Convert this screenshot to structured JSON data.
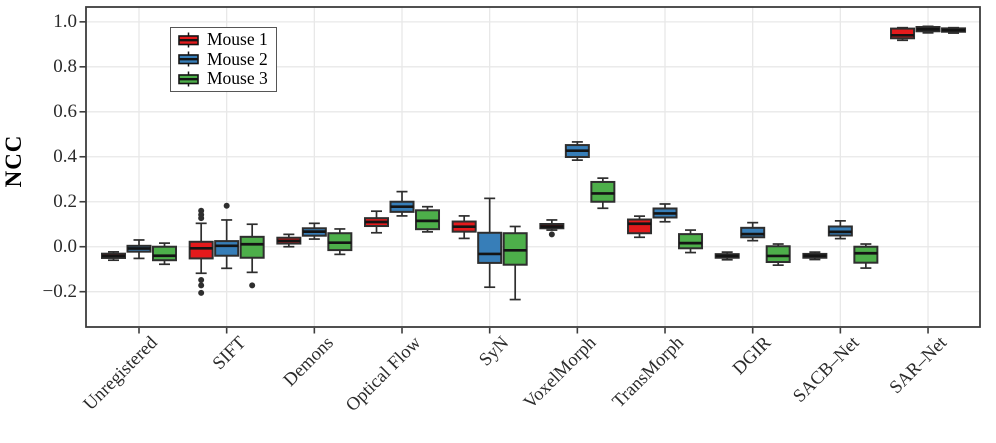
{
  "chart_data": {
    "type": "boxplot",
    "title": "",
    "ylabel": "NCC",
    "xlabel": "",
    "grid": "both",
    "legend_position": "top-left-inside",
    "ylim": [
      -0.357,
      1.066
    ],
    "yticks": [
      "1.0",
      "0.8",
      "0.6",
      "0.4",
      "0.2",
      "0.0",
      "−0.2"
    ],
    "ytick_values": [
      1.0,
      0.8,
      0.6,
      0.4,
      0.2,
      0.0,
      -0.2
    ],
    "categories": [
      "Unregistered",
      "SIFT",
      "Demons",
      "Optical Flow",
      "SyN",
      "VoxelMorph",
      "TransMorph",
      "DGIR",
      "SACB–Net",
      "SAR–Net"
    ],
    "series": [
      {
        "name": "Mouse 1",
        "color": "#e41a1c",
        "boxes": [
          {
            "lo": -0.06,
            "q1": -0.05,
            "med": -0.041,
            "q3": -0.031,
            "hi": -0.023,
            "fliers": []
          },
          {
            "lo": -0.118,
            "q1": -0.052,
            "med": -0.007,
            "q3": 0.022,
            "hi": 0.104,
            "fliers": [
              0.16,
              0.142,
              0.127,
              -0.148,
              -0.172,
              -0.205
            ]
          },
          {
            "lo": 0.0,
            "q1": 0.014,
            "med": 0.026,
            "q3": 0.04,
            "hi": 0.055,
            "fliers": []
          },
          {
            "lo": 0.062,
            "q1": 0.092,
            "med": 0.11,
            "q3": 0.127,
            "hi": 0.158,
            "fliers": []
          },
          {
            "lo": 0.037,
            "q1": 0.067,
            "med": 0.089,
            "q3": 0.112,
            "hi": 0.137,
            "fliers": []
          },
          {
            "lo": 0.074,
            "q1": 0.082,
            "med": 0.09,
            "q3": 0.101,
            "hi": 0.119,
            "fliers": [
              0.055
            ]
          },
          {
            "lo": 0.042,
            "q1": 0.06,
            "med": 0.102,
            "q3": 0.121,
            "hi": 0.136,
            "fliers": []
          },
          {
            "lo": -0.058,
            "q1": -0.049,
            "med": -0.041,
            "q3": -0.033,
            "hi": -0.024,
            "fliers": []
          },
          {
            "lo": -0.057,
            "q1": -0.049,
            "med": -0.04,
            "q3": -0.032,
            "hi": -0.024,
            "fliers": []
          },
          {
            "lo": 0.918,
            "q1": 0.927,
            "med": 0.94,
            "q3": 0.97,
            "hi": 0.974,
            "fliers": []
          }
        ]
      },
      {
        "name": "Mouse 2",
        "color": "#377eb8",
        "boxes": [
          {
            "lo": -0.052,
            "q1": -0.022,
            "med": -0.008,
            "q3": 0.004,
            "hi": 0.03,
            "fliers": []
          },
          {
            "lo": -0.096,
            "q1": -0.04,
            "med": 0.004,
            "q3": 0.025,
            "hi": 0.119,
            "fliers": [
              0.182
            ]
          },
          {
            "lo": 0.034,
            "q1": 0.049,
            "med": 0.067,
            "q3": 0.082,
            "hi": 0.104,
            "fliers": []
          },
          {
            "lo": 0.137,
            "q1": 0.155,
            "med": 0.178,
            "q3": 0.2,
            "hi": 0.245,
            "fliers": []
          },
          {
            "lo": -0.18,
            "q1": -0.072,
            "med": -0.032,
            "q3": 0.062,
            "hi": 0.215,
            "fliers": []
          },
          {
            "lo": 0.385,
            "q1": 0.399,
            "med": 0.427,
            "q3": 0.452,
            "hi": 0.466,
            "fliers": []
          },
          {
            "lo": 0.111,
            "q1": 0.13,
            "med": 0.148,
            "q3": 0.17,
            "hi": 0.19,
            "fliers": []
          },
          {
            "lo": 0.027,
            "q1": 0.042,
            "med": 0.056,
            "q3": 0.084,
            "hi": 0.107,
            "fliers": []
          },
          {
            "lo": 0.036,
            "q1": 0.05,
            "med": 0.066,
            "q3": 0.09,
            "hi": 0.115,
            "fliers": []
          },
          {
            "lo": 0.951,
            "q1": 0.958,
            "med": 0.967,
            "q3": 0.977,
            "hi": 0.98,
            "fliers": []
          }
        ]
      },
      {
        "name": "Mouse 3",
        "color": "#4daf4a",
        "boxes": [
          {
            "lo": -0.078,
            "q1": -0.06,
            "med": -0.04,
            "q3": 0.0,
            "hi": 0.016,
            "fliers": []
          },
          {
            "lo": -0.114,
            "q1": -0.049,
            "med": 0.011,
            "q3": 0.044,
            "hi": 0.1,
            "fliers": [
              -0.172
            ]
          },
          {
            "lo": -0.034,
            "q1": -0.015,
            "med": 0.018,
            "q3": 0.06,
            "hi": 0.079,
            "fliers": []
          },
          {
            "lo": 0.066,
            "q1": 0.078,
            "med": 0.115,
            "q3": 0.162,
            "hi": 0.178,
            "fliers": []
          },
          {
            "lo": -0.235,
            "q1": -0.08,
            "med": -0.016,
            "q3": 0.06,
            "hi": 0.09,
            "fliers": []
          },
          {
            "lo": 0.171,
            "q1": 0.2,
            "med": 0.237,
            "q3": 0.288,
            "hi": 0.305,
            "fliers": []
          },
          {
            "lo": -0.026,
            "q1": -0.007,
            "med": 0.016,
            "q3": 0.056,
            "hi": 0.074,
            "fliers": []
          },
          {
            "lo": -0.082,
            "q1": -0.068,
            "med": -0.041,
            "q3": 0.002,
            "hi": 0.012,
            "fliers": []
          },
          {
            "lo": -0.095,
            "q1": -0.071,
            "med": -0.029,
            "q3": 0.0,
            "hi": 0.012,
            "fliers": []
          },
          {
            "lo": 0.95,
            "q1": 0.956,
            "med": 0.963,
            "q3": 0.971,
            "hi": 0.974,
            "fliers": []
          }
        ]
      }
    ],
    "colors": {
      "box_border": "#2e2e2e",
      "median": "#141414",
      "panel_border": "#3d3d3d",
      "gridline": "#e8e8e8",
      "tick_text": "#2b2b2b"
    }
  }
}
